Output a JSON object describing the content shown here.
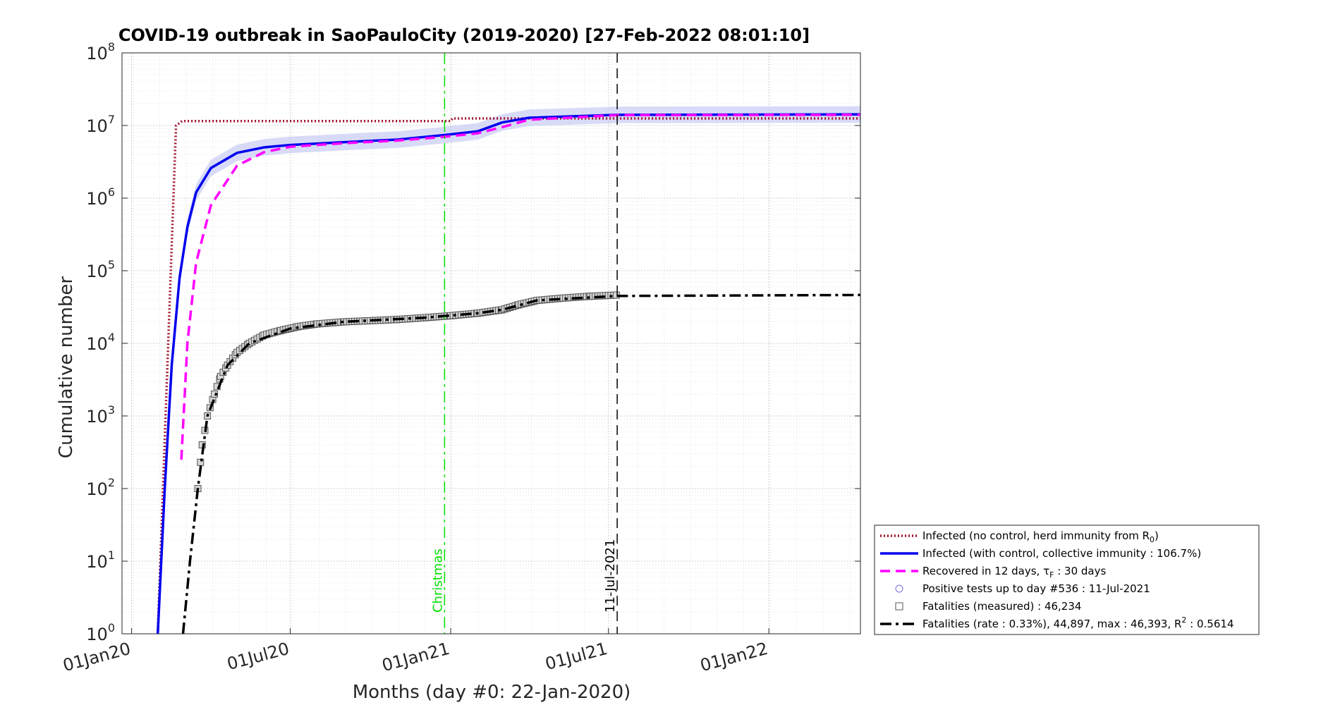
{
  "chart_data": {
    "type": "line",
    "title": "COVID-19 outbreak in SaoPauloCity (2019-2020) [27-Feb-2022 08:01:10]",
    "xlabel": "Months (day #0: 22-Jan-2020)",
    "ylabel": "Cumulative number",
    "xlim": [
      "2019-12-21",
      "2022-04-16"
    ],
    "ylim": [
      1,
      100000000
    ],
    "yscale": "log",
    "grid": true,
    "legend_position": "lower-right",
    "x_ticks": [
      "01Jan20",
      "01Jul20",
      "01Jan21",
      "01Jul21",
      "01Jan22"
    ],
    "x_tick_dates": [
      "2020-01-01",
      "2020-07-01",
      "2021-01-01",
      "2021-07-01",
      "2022-01-01"
    ],
    "y_ticks": [
      {
        "base": "10",
        "exp": "0",
        "value": 1
      },
      {
        "base": "10",
        "exp": "1",
        "value": 10
      },
      {
        "base": "10",
        "exp": "2",
        "value": 100
      },
      {
        "base": "10",
        "exp": "3",
        "value": 1000
      },
      {
        "base": "10",
        "exp": "4",
        "value": 10000
      },
      {
        "base": "10",
        "exp": "5",
        "value": 100000
      },
      {
        "base": "10",
        "exp": "6",
        "value": 1000000
      },
      {
        "base": "10",
        "exp": "7",
        "value": 10000000
      },
      {
        "base": "10",
        "exp": "8",
        "value": 100000000
      }
    ],
    "vertical_lines": [
      {
        "label": "Christmas",
        "date": "2020-12-25",
        "color": "#00e000",
        "style": "dashdot"
      },
      {
        "label": "11-Jul-2021",
        "date": "2021-07-11",
        "color": "#000000",
        "style": "dashed"
      }
    ],
    "series": [
      {
        "name": "Infected (no control, herd immunity from R",
        "name_sub": "0",
        "name_suffix": ")",
        "color": "#a0142d",
        "style": "dotted",
        "points": [
          [
            "2020-01-31",
            1
          ],
          [
            "2020-02-21",
            10000000
          ],
          [
            "2020-02-28",
            11500000
          ],
          [
            "2021-01-01",
            11500000
          ],
          [
            "2021-01-03",
            12500000
          ],
          [
            "2022-04-16",
            12500000
          ]
        ]
      },
      {
        "name": "Infected (with control, collective immunity : 106.7%)",
        "color": "#0000ee",
        "style": "solid",
        "band_color": "#c8ccf4",
        "points": [
          [
            "2020-01-31",
            1
          ],
          [
            "2020-02-08",
            100
          ],
          [
            "2020-02-16",
            5000
          ],
          [
            "2020-02-25",
            80000
          ],
          [
            "2020-03-05",
            400000
          ],
          [
            "2020-03-15",
            1200000
          ],
          [
            "2020-04-01",
            2600000
          ],
          [
            "2020-05-01",
            4200000
          ],
          [
            "2020-06-01",
            5000000
          ],
          [
            "2020-07-01",
            5400000
          ],
          [
            "2020-09-01",
            5900000
          ],
          [
            "2020-11-01",
            6400000
          ],
          [
            "2020-12-25",
            7400000
          ],
          [
            "2021-02-01",
            8300000
          ],
          [
            "2021-03-01",
            11000000
          ],
          [
            "2021-04-01",
            12800000
          ],
          [
            "2021-07-11",
            14000000
          ],
          [
            "2022-04-16",
            14200000
          ]
        ]
      },
      {
        "name": "Recovered in 12 days, ",
        "name_tau": "τ",
        "name_sub": "F",
        "name_suffix": " : 30 days",
        "color": "#ff00ff",
        "style": "dashed",
        "points": [
          [
            "2020-02-27",
            250
          ],
          [
            "2020-03-05",
            10000
          ],
          [
            "2020-03-15",
            130000
          ],
          [
            "2020-04-01",
            800000
          ],
          [
            "2020-05-01",
            2800000
          ],
          [
            "2020-06-01",
            4300000
          ],
          [
            "2020-07-01",
            5100000
          ],
          [
            "2020-09-01",
            5700000
          ],
          [
            "2020-11-01",
            6200000
          ],
          [
            "2020-12-25",
            7000000
          ],
          [
            "2021-02-01",
            7800000
          ],
          [
            "2021-03-01",
            9500000
          ],
          [
            "2021-04-01",
            12000000
          ],
          [
            "2021-07-11",
            13900000
          ],
          [
            "2022-04-16",
            14000000
          ]
        ]
      },
      {
        "name": "Positive tests up to day #536 : 11-Jul-2021",
        "color": "#7070e0",
        "style": "circle-marker",
        "points": []
      },
      {
        "name": "Fatalities (measured) : 46,234",
        "color": "#555555",
        "style": "square-marker",
        "points": [
          [
            "2020-03-17",
            100
          ],
          [
            "2020-03-22",
            400
          ],
          [
            "2020-03-28",
            1000
          ],
          [
            "2020-04-05",
            2000
          ],
          [
            "2020-04-12",
            3500
          ],
          [
            "2020-04-20",
            5000
          ],
          [
            "2020-05-01",
            7500
          ],
          [
            "2020-05-15",
            10000
          ],
          [
            "2020-06-01",
            13000
          ],
          [
            "2020-06-20",
            15000
          ],
          [
            "2020-07-10",
            17000
          ],
          [
            "2020-08-01",
            18500
          ],
          [
            "2020-09-01",
            19800
          ],
          [
            "2020-10-01",
            20500
          ],
          [
            "2020-11-01",
            21300
          ],
          [
            "2020-12-01",
            22500
          ],
          [
            "2021-01-01",
            24000
          ],
          [
            "2021-02-01",
            26000
          ],
          [
            "2021-03-01",
            29000
          ],
          [
            "2021-03-20",
            34000
          ],
          [
            "2021-04-10",
            39000
          ],
          [
            "2021-05-10",
            42000
          ],
          [
            "2021-06-10",
            44500
          ],
          [
            "2021-07-11",
            46234
          ]
        ]
      },
      {
        "name": "Fatalities (rate : 0.33%), 44,897, max : 46,393, R",
        "name_sup": "2",
        "name_suffix": " : 0.5614",
        "color": "#000000",
        "style": "dashdot",
        "points": [
          [
            "2020-02-29",
            1
          ],
          [
            "2020-03-08",
            10
          ],
          [
            "2020-03-17",
            100
          ],
          [
            "2020-03-28",
            1000
          ],
          [
            "2020-04-20",
            5000
          ],
          [
            "2020-05-15",
            10000
          ],
          [
            "2020-07-01",
            16000
          ],
          [
            "2020-09-01",
            19800
          ],
          [
            "2020-12-01",
            22500
          ],
          [
            "2021-02-01",
            26000
          ],
          [
            "2021-03-01",
            29000
          ],
          [
            "2021-04-10",
            39000
          ],
          [
            "2021-07-11",
            44897
          ],
          [
            "2022-04-16",
            46393
          ]
        ]
      }
    ]
  }
}
